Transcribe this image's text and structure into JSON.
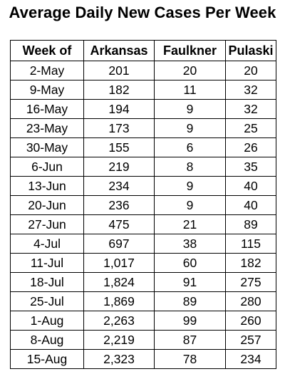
{
  "title": "Average Daily New Cases Per Week",
  "chart_data": {
    "type": "table",
    "title": "Average Daily New Cases Per Week",
    "columns": [
      "Week of",
      "Arkansas",
      "Faulkner",
      "Pulaski"
    ],
    "rows": [
      [
        "2-May",
        "201",
        "20",
        "20"
      ],
      [
        "9-May",
        "182",
        "11",
        "32"
      ],
      [
        "16-May",
        "194",
        "9",
        "32"
      ],
      [
        "23-May",
        "173",
        "9",
        "25"
      ],
      [
        "30-May",
        "155",
        "6",
        "26"
      ],
      [
        "6-Jun",
        "219",
        "8",
        "35"
      ],
      [
        "13-Jun",
        "234",
        "9",
        "40"
      ],
      [
        "20-Jun",
        "236",
        "9",
        "40"
      ],
      [
        "27-Jun",
        "475",
        "21",
        "89"
      ],
      [
        "4-Jul",
        "697",
        "38",
        "115"
      ],
      [
        "11-Jul",
        "1,017",
        "60",
        "182"
      ],
      [
        "18-Jul",
        "1,824",
        "91",
        "275"
      ],
      [
        "25-Jul",
        "1,869",
        "89",
        "280"
      ],
      [
        "1-Aug",
        "2,263",
        "99",
        "260"
      ],
      [
        "8-Aug",
        "2,219",
        "87",
        "257"
      ],
      [
        "15-Aug",
        "2,323",
        "78",
        "234"
      ]
    ]
  }
}
